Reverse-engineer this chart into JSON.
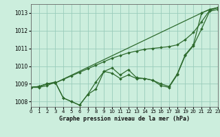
{
  "title": "Graphe pression niveau de la mer (hPa)",
  "bg_color": "#cceedd",
  "grid_color": "#99ccbb",
  "line_color": "#2d6a2d",
  "xlim": [
    0,
    23
  ],
  "ylim": [
    1007.7,
    1013.5
  ],
  "xticks": [
    0,
    1,
    2,
    3,
    4,
    5,
    6,
    7,
    8,
    9,
    10,
    11,
    12,
    13,
    14,
    15,
    16,
    17,
    18,
    19,
    20,
    21,
    22,
    23
  ],
  "yticks": [
    1008,
    1009,
    1010,
    1011,
    1012,
    1013
  ],
  "series": [
    [
      1008.8,
      1008.8,
      1008.9,
      1009.1,
      1008.2,
      1008.0,
      1007.8,
      1008.4,
      1008.7,
      1009.7,
      1009.6,
      1009.3,
      1009.5,
      1009.3,
      1009.3,
      1009.2,
      1008.9,
      1008.8,
      1009.5,
      1010.6,
      1011.15,
      1012.1,
      1013.1,
      1013.2
    ],
    [
      1008.8,
      1008.85,
      1009.0,
      1009.1,
      1008.2,
      1008.0,
      1007.8,
      1008.4,
      1009.1,
      1009.7,
      1009.9,
      1009.5,
      1009.8,
      1009.35,
      1009.3,
      1009.2,
      1009.0,
      1008.85,
      1009.55,
      1010.65,
      1011.2,
      1013.0,
      1013.2,
      1013.3
    ],
    [
      1008.8,
      1008.85,
      1009.0,
      1009.05,
      null,
      null,
      null,
      null,
      null,
      null,
      null,
      null,
      null,
      null,
      null,
      null,
      null,
      null,
      null,
      null,
      null,
      1013.0,
      1013.2,
      1013.3
    ],
    [
      1008.8,
      1008.85,
      1009.0,
      1009.05,
      1009.25,
      1009.45,
      1009.65,
      1009.85,
      1010.05,
      1010.25,
      1010.45,
      1010.6,
      1010.75,
      1010.85,
      1010.95,
      1011.0,
      1011.05,
      1011.1,
      1011.2,
      1011.5,
      1011.9,
      1012.5,
      1013.15,
      1013.3
    ]
  ]
}
